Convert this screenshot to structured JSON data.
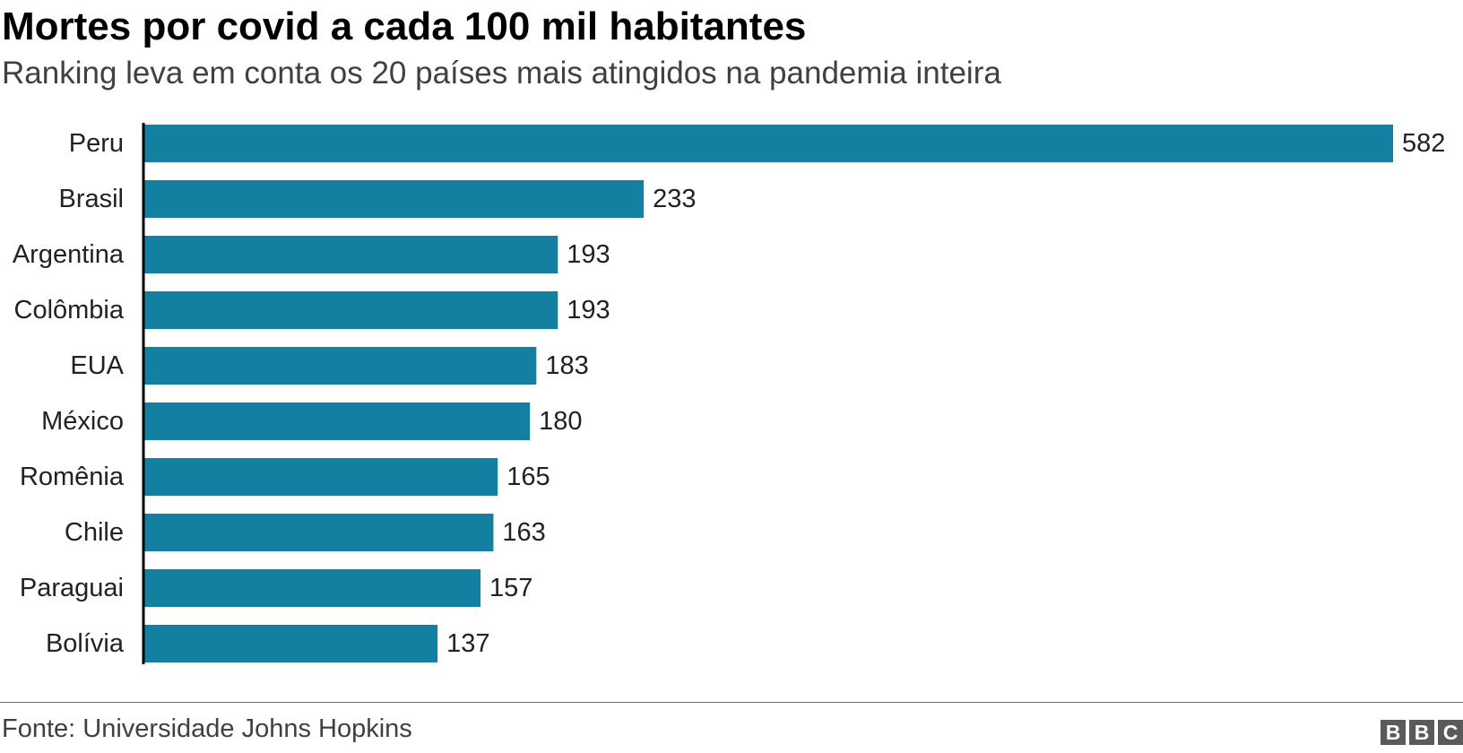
{
  "chart_data": {
    "type": "bar",
    "orientation": "horizontal",
    "title": "Mortes por covid a cada 100 mil habitantes",
    "subtitle": "Ranking leva em conta os 20 países mais atingidos na pandemia inteira",
    "categories": [
      "Peru",
      "Brasil",
      "Argentina",
      "Colômbia",
      "EUA",
      "México",
      "Romênia",
      "Chile",
      "Paraguai",
      "Bolívia"
    ],
    "values": [
      582,
      233,
      193,
      193,
      183,
      180,
      165,
      163,
      157,
      137
    ],
    "data_labels": [
      "582",
      "233",
      "193",
      "193",
      "183",
      "180",
      "165",
      "163",
      "157",
      "137"
    ],
    "xlim": [
      0,
      582
    ],
    "grid": false,
    "legend": "none",
    "bar_color": "#1380A1",
    "axis_color": "#000000"
  },
  "footer": {
    "source": "Fonte: Universidade Johns Hopkins",
    "logo": [
      "B",
      "B",
      "C"
    ]
  }
}
